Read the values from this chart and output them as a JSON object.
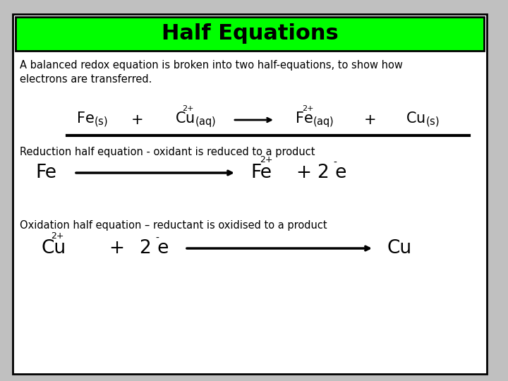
{
  "title": "Half Equations",
  "title_bg_color": "#00ff00",
  "title_text_color": "#000000",
  "slide_bg_color": "#c0c0c0",
  "content_bg_color": "#ffffff",
  "subtitle_text": "A balanced redox equation is broken into two half-equations, to show how\nelectrons are transferred.",
  "reduction_label": "Reduction half equation - oxidant is reduced to a product",
  "oxidation_label": "Oxidation half equation – reductant is oxidised to a product"
}
